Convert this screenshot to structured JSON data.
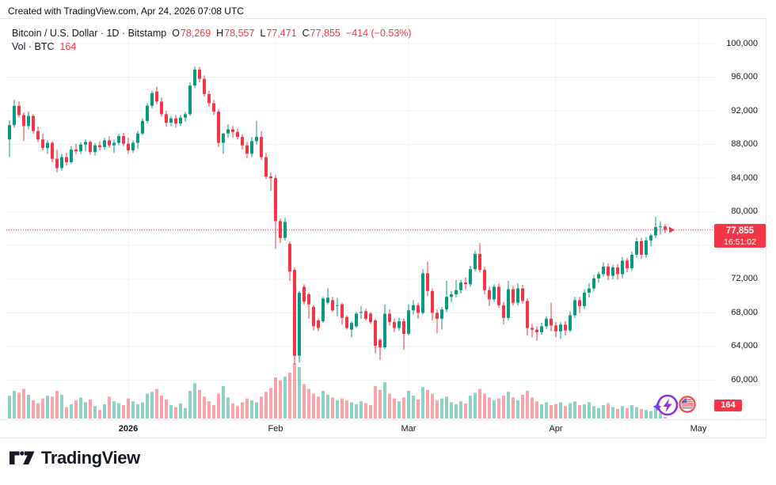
{
  "attribution": "Created with TradingView.com, Apr 24, 2026 07:08 UTC",
  "legend": {
    "series_title": "Bitcoin / U.S. Dollar · 1D · Bitstamp",
    "ohlc": [
      {
        "label": "O",
        "value": "78,269"
      },
      {
        "label": "H",
        "value": "78,557"
      },
      {
        "label": "L",
        "value": "77,471"
      },
      {
        "label": "C",
        "value": "77,855"
      }
    ],
    "change": "−414 (−0.53%)",
    "volume_label": "Vol · BTC",
    "volume_value": "164"
  },
  "price_axis": {
    "labels": [
      {
        "price": 100000,
        "text": "100,000"
      },
      {
        "price": 96000,
        "text": "96,000"
      },
      {
        "price": 92000,
        "text": "92,000"
      },
      {
        "price": 88000,
        "text": "88,000"
      },
      {
        "price": 84000,
        "text": "84,000"
      },
      {
        "price": 80000,
        "text": "80,000"
      },
      {
        "price": 72000,
        "text": "72,000"
      },
      {
        "price": 68000,
        "text": "68,000"
      },
      {
        "price": 64000,
        "text": "64,000"
      },
      {
        "price": 60000,
        "text": "60,000"
      }
    ],
    "gridline_prices": [
      100000,
      96000,
      92000,
      88000,
      84000,
      80000,
      76000,
      72000,
      68000,
      64000,
      60000
    ],
    "last_price": {
      "text": "77,855",
      "countdown": "16:51:02",
      "price": 77855
    },
    "volume_badge": "164"
  },
  "time_axis": {
    "ticks": [
      {
        "label": "2026",
        "index": 25,
        "bold": true
      },
      {
        "label": "Feb",
        "index": 56,
        "bold": false
      },
      {
        "label": "Mar",
        "index": 84,
        "bold": false
      },
      {
        "label": "Apr",
        "index": 115,
        "bold": false
      },
      {
        "label": "May",
        "index": 145,
        "bold": false
      }
    ]
  },
  "footer": {
    "brand": "TradingView"
  },
  "colors": {
    "up": "#089981",
    "down": "#f23645",
    "accent_red": "#f23645",
    "grid": "#eef0f4",
    "axis_text": "#131722",
    "vol_up": "rgba(8,153,129,0.45)",
    "vol_down": "rgba(242,54,69,0.45)",
    "flash_purple": "#8e2de2",
    "sparkle_purple": "#7b3df0",
    "flag_red": "#ef4850",
    "flag_blue": "#3c4f9e"
  },
  "chart_data": {
    "type": "candlestick",
    "title": "Bitcoin / U.S. Dollar, 1D, Bitstamp",
    "xlabel": "",
    "ylabel": "Price (USD)",
    "x_axis_labels": [
      "2026",
      "Feb",
      "Mar",
      "Apr",
      "May"
    ],
    "ylim": [
      59000,
      101500
    ],
    "grid": true,
    "volume_unit": "BTC",
    "current": {
      "open": 78269,
      "high": 78557,
      "low": 77471,
      "close": 77855,
      "change": -414,
      "change_pct": -0.53,
      "volume": 164
    },
    "candles_format": [
      "open",
      "high",
      "low",
      "close",
      "volume"
    ],
    "candles": [
      [
        88600,
        90900,
        86500,
        90300,
        2400
      ],
      [
        90300,
        93300,
        90000,
        92600,
        2900
      ],
      [
        92600,
        93100,
        91200,
        91500,
        2700
      ],
      [
        91500,
        91800,
        88400,
        90200,
        3100
      ],
      [
        90200,
        91900,
        89800,
        91400,
        2500
      ],
      [
        91400,
        91600,
        89300,
        89600,
        1900
      ],
      [
        89600,
        90100,
        88300,
        88600,
        1600
      ],
      [
        88600,
        89300,
        87300,
        87600,
        2100
      ],
      [
        87600,
        88500,
        86900,
        88200,
        2400
      ],
      [
        88200,
        88400,
        85900,
        86300,
        2300
      ],
      [
        86300,
        87400,
        84700,
        85200,
        2900
      ],
      [
        85200,
        86900,
        84900,
        86500,
        2500
      ],
      [
        86500,
        87000,
        85500,
        85900,
        1200
      ],
      [
        85900,
        87800,
        85700,
        87400,
        1500
      ],
      [
        87400,
        88100,
        86800,
        87200,
        1900
      ],
      [
        87200,
        88300,
        86900,
        88000,
        2200
      ],
      [
        88000,
        88600,
        87200,
        88300,
        1700
      ],
      [
        88300,
        88500,
        86800,
        87100,
        2000
      ],
      [
        87100,
        88200,
        86700,
        87900,
        1300
      ],
      [
        87900,
        88400,
        87300,
        87700,
        900
      ],
      [
        87700,
        88800,
        87400,
        88500,
        1500
      ],
      [
        88500,
        89000,
        87600,
        87900,
        2300
      ],
      [
        87900,
        88600,
        87000,
        88200,
        1800
      ],
      [
        88200,
        89300,
        87900,
        89000,
        1600
      ],
      [
        89000,
        89400,
        87800,
        88100,
        1400
      ],
      [
        88100,
        88800,
        86900,
        87300,
        2100
      ],
      [
        87300,
        88500,
        87000,
        88200,
        1800
      ],
      [
        88200,
        89600,
        87500,
        89300,
        1500
      ],
      [
        89300,
        91100,
        89100,
        90800,
        1700
      ],
      [
        90800,
        92900,
        90500,
        92600,
        2600
      ],
      [
        92600,
        94400,
        92300,
        94100,
        2800
      ],
      [
        94300,
        94900,
        92800,
        93100,
        3100
      ],
      [
        93100,
        93600,
        91300,
        91600,
        2400
      ],
      [
        91600,
        92000,
        90100,
        90600,
        2000
      ],
      [
        90600,
        91400,
        90200,
        91100,
        1400
      ],
      [
        91100,
        91500,
        90000,
        90500,
        1200
      ],
      [
        90500,
        91500,
        90200,
        91200,
        1600
      ],
      [
        91200,
        91900,
        90700,
        91600,
        1100
      ],
      [
        91600,
        95400,
        91400,
        95000,
        2900
      ],
      [
        95000,
        97300,
        94700,
        96900,
        3700
      ],
      [
        96900,
        97200,
        95400,
        95800,
        3000
      ],
      [
        95800,
        96200,
        93700,
        94000,
        2300
      ],
      [
        94000,
        94400,
        92500,
        92900,
        1800
      ],
      [
        92900,
        93300,
        91500,
        91900,
        1400
      ],
      [
        91900,
        92200,
        87700,
        88200,
        2600
      ],
      [
        88200,
        89400,
        86900,
        89300,
        3400
      ],
      [
        89300,
        90400,
        88800,
        89800,
        2200
      ],
      [
        89800,
        90200,
        88800,
        89500,
        1600
      ],
      [
        89500,
        89900,
        88600,
        88900,
        1300
      ],
      [
        88900,
        89200,
        87400,
        87900,
        1700
      ],
      [
        87900,
        88300,
        86400,
        86900,
        2100
      ],
      [
        86900,
        88900,
        86500,
        88400,
        1900
      ],
      [
        88400,
        90800,
        88000,
        88900,
        1700
      ],
      [
        88900,
        89600,
        86200,
        86500,
        2300
      ],
      [
        86500,
        87000,
        83900,
        84200,
        2800
      ],
      [
        84200,
        84700,
        82500,
        84000,
        3200
      ],
      [
        84000,
        84400,
        75600,
        78900,
        4300
      ],
      [
        78900,
        79200,
        76300,
        76900,
        4000
      ],
      [
        76900,
        79300,
        76600,
        78800,
        4400
      ],
      [
        76200,
        76500,
        71800,
        72900,
        4800
      ],
      [
        73100,
        73400,
        61900,
        62900,
        5800
      ],
      [
        62900,
        70600,
        62100,
        70400,
        5400
      ],
      [
        71100,
        71400,
        69000,
        69300,
        3600
      ],
      [
        70200,
        70400,
        67300,
        69000,
        3100
      ],
      [
        68700,
        68900,
        65900,
        66400,
        2600
      ],
      [
        67100,
        67300,
        65800,
        66200,
        2300
      ],
      [
        67000,
        69900,
        66800,
        69700,
        2900
      ],
      [
        69200,
        70900,
        69000,
        69800,
        2500
      ],
      [
        69500,
        69900,
        68100,
        68300,
        2200
      ],
      [
        68900,
        69800,
        67600,
        68900,
        1900
      ],
      [
        69000,
        69200,
        66600,
        67400,
        2100
      ],
      [
        67500,
        67700,
        66000,
        66200,
        1900
      ],
      [
        66000,
        67000,
        65100,
        66800,
        1700
      ],
      [
        66400,
        68100,
        66200,
        67900,
        1500
      ],
      [
        68000,
        68800,
        67300,
        68100,
        1800
      ],
      [
        68200,
        68500,
        67100,
        67300,
        1600
      ],
      [
        67900,
        68100,
        66700,
        66900,
        1400
      ],
      [
        67100,
        67300,
        63200,
        64100,
        3400
      ],
      [
        64800,
        65000,
        62400,
        63900,
        3000
      ],
      [
        63900,
        69000,
        63700,
        67900,
        3800
      ],
      [
        67900,
        68400,
        66500,
        66900,
        2600
      ],
      [
        66900,
        67300,
        65700,
        66200,
        2100
      ],
      [
        66200,
        67400,
        65900,
        67000,
        1800
      ],
      [
        67000,
        67300,
        63600,
        65500,
        2200
      ],
      [
        65500,
        69000,
        65300,
        68300,
        2900
      ],
      [
        68300,
        69500,
        67800,
        68900,
        2400
      ],
      [
        68900,
        69200,
        67300,
        68000,
        2000
      ],
      [
        68000,
        73200,
        67800,
        72700,
        3300
      ],
      [
        72700,
        74100,
        70000,
        70600,
        3000
      ],
      [
        70600,
        70900,
        67100,
        68000,
        2600
      ],
      [
        68000,
        68400,
        65600,
        67300,
        1900
      ],
      [
        67300,
        68700,
        66000,
        68400,
        2100
      ],
      [
        68400,
        71800,
        68100,
        69900,
        2300
      ],
      [
        69900,
        70600,
        69300,
        70200,
        1700
      ],
      [
        70200,
        71900,
        69800,
        70700,
        1500
      ],
      [
        70700,
        71900,
        70300,
        71600,
        1800
      ],
      [
        71600,
        72200,
        70800,
        71400,
        1600
      ],
      [
        71400,
        73600,
        71100,
        73200,
        2400
      ],
      [
        73200,
        75400,
        72900,
        75000,
        2700
      ],
      [
        75000,
        76300,
        72800,
        73100,
        3100
      ],
      [
        73100,
        73500,
        70200,
        70700,
        2600
      ],
      [
        70700,
        71100,
        68800,
        69600,
        2200
      ],
      [
        69600,
        71400,
        69300,
        71100,
        1900
      ],
      [
        71100,
        71500,
        68600,
        68900,
        2100
      ],
      [
        68900,
        69300,
        66600,
        67400,
        2400
      ],
      [
        67400,
        71800,
        67100,
        70800,
        2800
      ],
      [
        70800,
        71200,
        68900,
        69200,
        2200
      ],
      [
        69200,
        71500,
        68900,
        70900,
        1900
      ],
      [
        70900,
        71300,
        69100,
        69400,
        2500
      ],
      [
        69400,
        69700,
        65300,
        66200,
        2900
      ],
      [
        66200,
        66700,
        65100,
        66000,
        2200
      ],
      [
        66000,
        66400,
        64700,
        65700,
        1800
      ],
      [
        65700,
        66800,
        65400,
        66400,
        1500
      ],
      [
        66400,
        67600,
        66100,
        67300,
        1700
      ],
      [
        67300,
        69200,
        65800,
        66500,
        1400
      ],
      [
        66500,
        66900,
        65100,
        65800,
        1500
      ],
      [
        65800,
        66900,
        64900,
        66600,
        1700
      ],
      [
        66600,
        67000,
        65300,
        65900,
        1300
      ],
      [
        65900,
        68200,
        65700,
        67700,
        1600
      ],
      [
        67700,
        69900,
        67400,
        69500,
        1800
      ],
      [
        69500,
        69900,
        68000,
        68800,
        1400
      ],
      [
        68800,
        70800,
        68500,
        70400,
        1500
      ],
      [
        70400,
        71500,
        69800,
        70900,
        1700
      ],
      [
        70900,
        72500,
        70600,
        72100,
        1300
      ],
      [
        72100,
        72900,
        71600,
        72600,
        1100
      ],
      [
        72600,
        74000,
        72300,
        73500,
        1400
      ],
      [
        73500,
        73900,
        71900,
        72400,
        1600
      ],
      [
        72400,
        73700,
        72000,
        73400,
        1200
      ],
      [
        73400,
        73800,
        72000,
        72600,
        1000
      ],
      [
        72600,
        74600,
        72100,
        74200,
        1300
      ],
      [
        74200,
        74500,
        72800,
        73300,
        1100
      ],
      [
        73300,
        75300,
        73000,
        74900,
        1400
      ],
      [
        74900,
        76900,
        74600,
        76500,
        1200
      ],
      [
        76500,
        76900,
        74400,
        74900,
        1000
      ],
      [
        74900,
        77000,
        74600,
        76600,
        900
      ],
      [
        76600,
        77400,
        75900,
        77200,
        800
      ],
      [
        77200,
        79400,
        76900,
        78200,
        1100
      ],
      [
        78200,
        78900,
        77300,
        78269,
        600
      ],
      [
        78269,
        78557,
        77471,
        77855,
        164
      ]
    ]
  }
}
